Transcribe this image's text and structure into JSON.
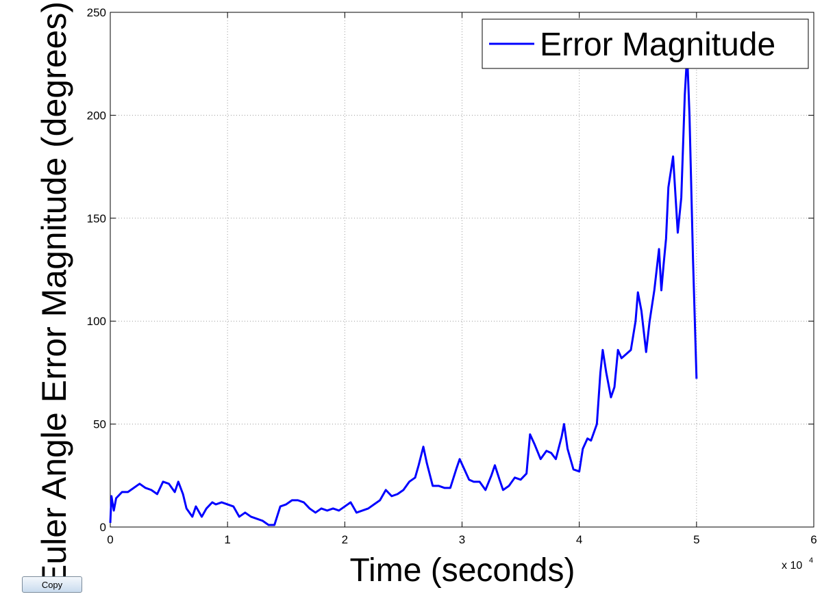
{
  "chart_data": {
    "type": "line",
    "xlabel": "Time (seconds)",
    "ylabel": "Euler Angle Error Magnitude (degrees)",
    "x_multiplier": "x 10",
    "x_exponent": "4",
    "x": [
      0,
      0.01,
      0.03,
      0.05,
      0.1,
      0.15,
      0.2,
      0.25,
      0.3,
      0.35,
      0.4,
      0.45,
      0.5,
      0.55,
      0.58,
      0.62,
      0.65,
      0.7,
      0.73,
      0.78,
      0.82,
      0.87,
      0.9,
      0.95,
      1.0,
      1.05,
      1.1,
      1.15,
      1.2,
      1.25,
      1.3,
      1.35,
      1.4,
      1.45,
      1.5,
      1.55,
      1.6,
      1.65,
      1.7,
      1.75,
      1.8,
      1.85,
      1.9,
      1.95,
      2.0,
      2.05,
      2.1,
      2.15,
      2.2,
      2.25,
      2.3,
      2.35,
      2.4,
      2.45,
      2.5,
      2.55,
      2.6,
      2.63,
      2.67,
      2.7,
      2.75,
      2.8,
      2.85,
      2.9,
      2.95,
      2.98,
      3.02,
      3.06,
      3.1,
      3.15,
      3.2,
      3.25,
      3.28,
      3.32,
      3.35,
      3.4,
      3.45,
      3.5,
      3.55,
      3.58,
      3.62,
      3.67,
      3.72,
      3.76,
      3.8,
      3.85,
      3.87,
      3.9,
      3.95,
      4.0,
      4.03,
      4.07,
      4.1,
      4.15,
      4.18,
      4.2,
      4.23,
      4.27,
      4.3,
      4.33,
      4.36,
      4.4,
      4.44,
      4.48,
      4.5,
      4.53,
      4.57,
      4.6,
      4.64,
      4.68,
      4.7,
      4.72,
      4.74,
      4.76,
      4.8,
      4.84,
      4.87,
      4.9,
      4.92,
      4.94,
      4.97,
      5.0
    ],
    "series": [
      {
        "name": "Error Magnitude",
        "color": "#0000ff",
        "values": [
          2,
          15,
          8,
          14,
          17,
          17,
          19,
          21,
          19,
          18,
          16,
          22,
          21,
          17,
          22,
          16,
          9,
          5,
          10,
          5,
          9,
          12,
          11,
          12,
          11,
          10,
          5,
          7,
          5,
          4,
          3,
          1,
          1,
          10,
          11,
          13,
          13,
          12,
          9,
          7,
          9,
          8,
          9,
          8,
          10,
          12,
          7,
          8,
          9,
          11,
          13,
          18,
          15,
          16,
          18,
          22,
          24,
          30,
          39,
          31,
          20,
          20,
          19,
          19,
          28,
          33,
          28,
          23,
          22,
          22,
          18,
          25,
          30,
          23,
          18,
          20,
          24,
          23,
          26,
          45,
          40,
          33,
          37,
          36,
          33,
          44,
          50,
          38,
          28,
          27,
          38,
          43,
          42,
          50,
          75,
          86,
          75,
          63,
          68,
          86,
          82,
          84,
          86,
          100,
          114,
          105,
          85,
          100,
          115,
          135,
          115,
          128,
          140,
          165,
          180,
          143,
          160,
          210,
          230,
          200,
          130,
          72
        ]
      }
    ],
    "xlim": [
      0,
      6
    ],
    "ylim": [
      0,
      250
    ],
    "xticks": [
      0,
      1,
      2,
      3,
      4,
      5,
      6
    ],
    "yticks": [
      0,
      50,
      100,
      150,
      200,
      250
    ],
    "grid": true,
    "legend": "upper-right"
  },
  "ui": {
    "copy_button": "Copy"
  }
}
